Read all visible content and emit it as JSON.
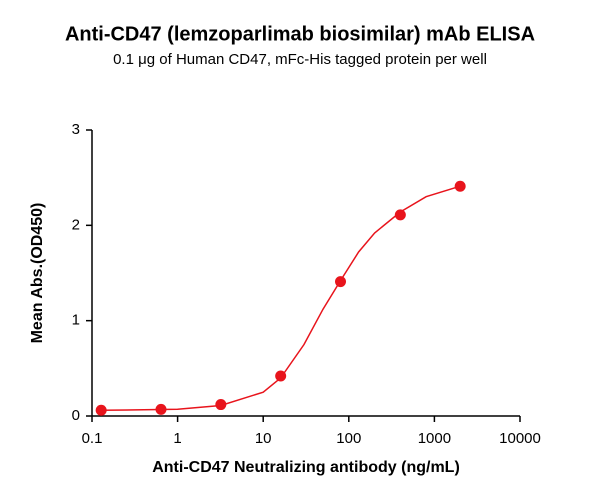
{
  "chart_data": {
    "type": "scatter",
    "title": "Anti-CD47 (lemzoparlimab biosimilar) mAb ELISA",
    "subtitle": "0.1 μg of Human CD47, mFc-His tagged protein per well",
    "x_label": "Anti-CD47 Neutralizing antibody (ng/mL)",
    "y_label": "Mean Abs.(OD450)",
    "x": [
      0.128,
      0.64,
      3.2,
      16,
      80,
      400,
      2000
    ],
    "values": [
      0.06,
      0.07,
      0.12,
      0.42,
      1.41,
      2.11,
      2.41
    ],
    "color": "#e8141c",
    "curve": {
      "x": [
        0.128,
        1,
        3.2,
        10,
        16,
        30,
        50,
        80,
        130,
        200,
        400,
        800,
        2000
      ],
      "values": [
        0.06,
        0.07,
        0.11,
        0.25,
        0.4,
        0.75,
        1.12,
        1.42,
        1.72,
        1.92,
        2.14,
        2.3,
        2.41
      ]
    },
    "xscale": "log",
    "xlim": [
      0.1,
      10000
    ],
    "xticks": [
      0.1,
      1,
      10,
      100,
      1000,
      10000
    ],
    "ylim": [
      0,
      3
    ],
    "yticks": [
      0,
      1,
      2,
      3
    ]
  }
}
